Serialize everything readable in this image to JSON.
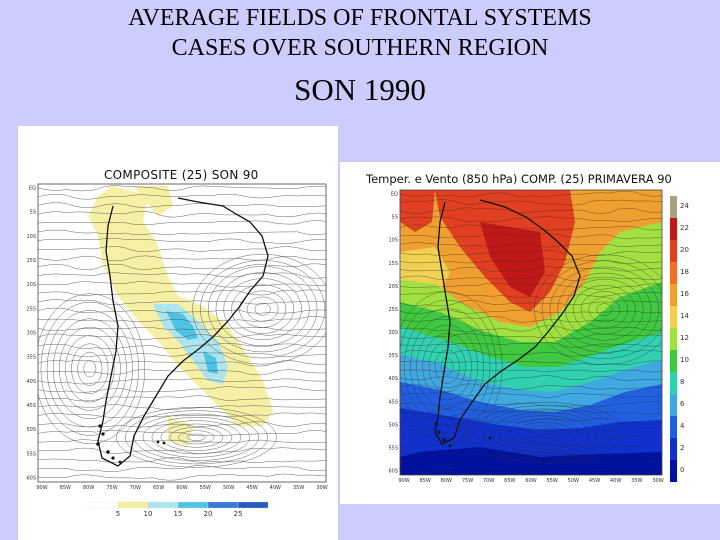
{
  "header": {
    "line1": "AVERAGE FIELDS OF FRONTAL SYSTEMS",
    "line2": "CASES OVER  SOUTHERN REGION",
    "line3": "SON 1990"
  },
  "left_map": {
    "title": "COMPOSITE (25) SON 90",
    "lat_ticks": [
      "EQ",
      "5S",
      "10S",
      "15S",
      "20S",
      "25S",
      "30S",
      "35S",
      "40S",
      "45S",
      "50S",
      "55S",
      "60S"
    ],
    "lon_ticks": [
      "90W",
      "85W",
      "80W",
      "75W",
      "70W",
      "65W",
      "60W",
      "55W",
      "50W",
      "45W",
      "40W",
      "35W",
      "30W"
    ],
    "colorbar": {
      "labels": [
        "5",
        "10",
        "15",
        "20",
        "25"
      ],
      "colors": [
        "#ffffff",
        "#f5ee9a",
        "#aee4ee",
        "#4cc4e4",
        "#3a78d6",
        "#2a5ac0"
      ]
    }
  },
  "right_map": {
    "title": "Temper. e Vento (850 hPa) COMP. (25) PRIMAVERA 90",
    "lat_ticks": [
      "EQ",
      "5S",
      "10S",
      "15S",
      "20S",
      "25S",
      "30S",
      "35S",
      "40S",
      "45S",
      "50S",
      "55S",
      "60S"
    ],
    "lon_ticks": [
      "90W",
      "85W",
      "80W",
      "75W",
      "70W",
      "65W",
      "60W",
      "55W",
      "50W",
      "45W",
      "40W",
      "35W",
      "30W"
    ],
    "colorbar": {
      "labels": [
        "24",
        "22",
        "20",
        "18",
        "16",
        "14",
        "12",
        "10",
        "8",
        "6",
        "4",
        "2",
        "0"
      ],
      "colors": [
        "#a8a080",
        "#c01818",
        "#e04020",
        "#f07028",
        "#f0a030",
        "#f0d050",
        "#a0e040",
        "#40c840",
        "#30d0b0",
        "#40a8e0",
        "#2060e0",
        "#1030d0",
        "#0010a0"
      ]
    }
  }
}
